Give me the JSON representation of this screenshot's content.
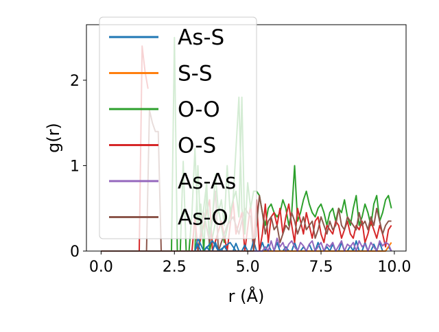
{
  "chart_data": {
    "type": "line",
    "xlabel": "r (Å)",
    "ylabel": "g(r)",
    "xlim": [
      -0.5,
      10.4
    ],
    "ylim": [
      0,
      2.65
    ],
    "xticks": [
      0.0,
      2.5,
      5.0,
      7.5,
      10.0
    ],
    "xtick_labels": [
      "0.0",
      "2.5",
      "5.0",
      "7.5",
      "10.0"
    ],
    "yticks": [
      0,
      1,
      2
    ],
    "ytick_labels": [
      "0",
      "1",
      "2"
    ],
    "grid": false,
    "legend_position": "upper-left",
    "x": [
      0.0,
      0.1,
      0.2,
      0.3,
      0.4,
      0.5,
      0.6,
      0.7,
      0.8,
      0.9,
      1.0,
      1.1,
      1.2,
      1.3,
      1.4,
      1.5,
      1.6,
      1.7,
      1.8,
      1.9,
      2.0,
      2.1,
      2.2,
      2.3,
      2.4,
      2.5,
      2.6,
      2.7,
      2.8,
      2.9,
      3.0,
      3.1,
      3.2,
      3.3,
      3.4,
      3.5,
      3.6,
      3.7,
      3.8,
      3.9,
      4.0,
      4.1,
      4.2,
      4.3,
      4.4,
      4.5,
      4.6,
      4.7,
      4.8,
      4.9,
      5.0,
      5.1,
      5.2,
      5.3,
      5.4,
      5.5,
      5.6,
      5.7,
      5.8,
      5.9,
      6.0,
      6.1,
      6.2,
      6.3,
      6.4,
      6.5,
      6.6,
      6.7,
      6.8,
      6.9,
      7.0,
      7.1,
      7.2,
      7.3,
      7.4,
      7.5,
      7.6,
      7.7,
      7.8,
      7.9,
      8.0,
      8.1,
      8.2,
      8.3,
      8.4,
      8.5,
      8.6,
      8.7,
      8.8,
      8.9,
      9.0,
      9.1,
      9.2,
      9.3,
      9.4,
      9.5,
      9.6,
      9.7,
      9.8,
      9.9
    ],
    "series": [
      {
        "name": "As-S",
        "color": "#1f77b4",
        "values": [
          0,
          0,
          0,
          0,
          0,
          0,
          0,
          0,
          0,
          0,
          0,
          0,
          0,
          0,
          0,
          0,
          0,
          0,
          0,
          0,
          0,
          0,
          0,
          0,
          0,
          0,
          0,
          0,
          0,
          0,
          0,
          0,
          0,
          0.08,
          0,
          0,
          0.05,
          0,
          0,
          0.1,
          0,
          0,
          0.06,
          0,
          0,
          0,
          0.09,
          0,
          0,
          0.07,
          0,
          0,
          0.12,
          0,
          0,
          0.1,
          0,
          0.08,
          0,
          0,
          0.1,
          0,
          0,
          0.05,
          0,
          0,
          0.1,
          0,
          0,
          0.05,
          0,
          0.08,
          0,
          0,
          0.1,
          0,
          0,
          0.05,
          0,
          0.08,
          0,
          0,
          0.1,
          0,
          0,
          0.06,
          0,
          0.12,
          0,
          0,
          0.1,
          0,
          0,
          0.08,
          0,
          0.1,
          0,
          0,
          0.05,
          0
        ]
      },
      {
        "name": "S-S",
        "color": "#ff7f0e",
        "values": [
          0,
          0,
          0,
          0,
          0,
          0,
          0,
          0,
          0,
          0,
          0,
          0,
          0,
          0,
          0,
          0,
          0,
          0,
          0,
          0,
          0,
          0,
          0,
          0,
          0,
          0,
          0,
          0,
          0,
          0,
          0,
          0,
          0,
          0,
          0,
          0,
          0,
          0,
          0,
          0,
          0,
          0,
          0,
          0,
          0,
          0,
          0,
          0,
          0,
          0,
          0,
          0,
          0,
          0,
          0,
          0,
          0,
          0,
          0,
          0,
          0,
          0,
          0,
          0,
          0,
          0,
          0,
          0,
          0,
          0,
          0,
          0,
          0,
          0,
          0,
          0,
          0,
          0,
          0,
          0,
          0,
          0,
          0,
          0,
          0,
          0,
          0,
          0,
          0,
          0,
          0,
          0,
          0,
          0,
          0,
          0,
          0,
          0,
          0.05,
          0.1
        ]
      },
      {
        "name": "O-O",
        "color": "#2ca02c",
        "values": [
          0,
          0,
          0,
          0,
          0,
          0,
          0,
          0,
          0,
          0,
          0,
          0,
          0,
          0,
          0,
          0,
          0,
          0,
          0,
          0,
          0,
          0,
          0,
          0,
          0,
          2.5,
          0,
          0,
          1.05,
          0,
          0,
          0.45,
          1.2,
          0.3,
          0.55,
          0,
          0.7,
          0.2,
          0.4,
          0.9,
          0.45,
          0.6,
          0.3,
          1.0,
          0.45,
          0.6,
          0.7,
          0.4,
          1.8,
          0.2,
          0.8,
          0.5,
          0.7,
          0.7,
          0.65,
          0.45,
          0.3,
          0.5,
          0.55,
          0.45,
          0.4,
          0.45,
          0.6,
          0.5,
          0.3,
          0.45,
          1.0,
          0.35,
          0.45,
          0.6,
          0.7,
          0.55,
          0.45,
          0.4,
          0.5,
          0.55,
          0.45,
          0.3,
          0.45,
          0.5,
          0.35,
          0.5,
          0.45,
          0.6,
          0.4,
          0.3,
          0.5,
          0.65,
          0.3,
          0.4,
          0.55,
          0.45,
          0.3,
          0.55,
          0.65,
          0.35,
          0.45,
          0.6,
          0.65,
          0.5
        ]
      },
      {
        "name": "O-S",
        "color": "#d62728",
        "values": [
          0,
          0,
          0,
          0,
          0,
          0,
          0,
          0,
          0,
          0,
          0,
          0,
          0,
          0,
          0,
          0,
          0,
          0,
          0,
          0,
          0,
          0,
          0,
          0,
          0,
          0,
          0,
          0,
          0,
          0,
          0,
          0,
          0,
          0,
          0,
          0,
          0,
          0,
          0,
          0,
          0,
          0,
          0,
          0,
          0,
          0,
          0,
          0,
          0,
          0,
          0,
          0,
          0,
          0.6,
          0,
          0.2,
          0.55,
          0.1,
          0.4,
          0.45,
          0.3,
          0.5,
          0.2,
          0.4,
          0.55,
          0.3,
          0.1,
          0.5,
          0.35,
          0.2,
          0.45,
          0.3,
          0.15,
          0.35,
          0.4,
          0.2,
          0.1,
          0.3,
          0.25,
          0.2,
          0.35,
          0.3,
          0.15,
          0.25,
          0.35,
          0.2,
          0.15,
          0.3,
          0.25,
          0.35,
          0.1,
          0.2,
          0.35,
          0.25,
          0.15,
          0.3,
          0.2,
          0.05,
          0.25,
          0.3
        ]
      },
      {
        "name": "As-As",
        "color": "#9467bd",
        "values": [
          0,
          0,
          0,
          0,
          0,
          0,
          0,
          0,
          0,
          0,
          0,
          0,
          0,
          0,
          0,
          0,
          0,
          0,
          0,
          0,
          0,
          0,
          0,
          0,
          0,
          0,
          0,
          0,
          0,
          0,
          0,
          0,
          0,
          0,
          0,
          0,
          0,
          0,
          0,
          0,
          0,
          0,
          0,
          0,
          0,
          0,
          0,
          0,
          0,
          0,
          0,
          0,
          0,
          0,
          0,
          0,
          0.05,
          0,
          0.12,
          0,
          0.15,
          0.05,
          0.1,
          0,
          0.08,
          0.12,
          0.05,
          0,
          0.1,
          0.06,
          0,
          0.08,
          0.12,
          0,
          0.05,
          0.1,
          0,
          0.08,
          0.05,
          0.1,
          0,
          0.06,
          0.12,
          0,
          0.08,
          0.05,
          0.1,
          0,
          0.12,
          0.05,
          0.08,
          0,
          0.1,
          0.05,
          0,
          0.12,
          0.06,
          0.1,
          0.08,
          0
        ]
      },
      {
        "name": "As-O",
        "color": "#8c564b",
        "values": [
          0,
          0,
          0,
          0,
          0,
          0,
          0,
          0,
          0,
          0,
          0,
          0,
          0,
          0,
          0,
          0,
          0,
          0,
          0,
          0,
          0,
          0,
          0,
          0,
          0,
          0,
          0,
          0,
          0,
          0,
          0,
          0,
          0,
          0,
          0,
          0,
          0,
          0,
          0,
          0,
          0,
          0,
          0,
          0,
          0,
          0,
          0,
          0,
          0,
          0,
          0,
          0,
          0,
          0.3,
          0.65,
          0.45,
          0.2,
          0.35,
          0.4,
          0.25,
          0.3,
          0.1,
          0.2,
          0.3,
          0.25,
          0.45,
          0.35,
          0.2,
          0.3,
          0.4,
          0.25,
          0.3,
          0.35,
          0.15,
          0.25,
          0.4,
          0.3,
          0.2,
          0.35,
          0.25,
          0.3,
          0.5,
          0.3,
          0.25,
          0.4,
          0.35,
          0.3,
          0.25,
          0.45,
          0.3,
          0.35,
          0.25,
          0.4,
          0.3,
          0.5,
          0.35,
          0.2,
          0.3,
          0.35,
          0.35
        ]
      }
    ],
    "background_traces": [
      {
        "series": "O-S",
        "points": [
          [
            1.3,
            0.0
          ],
          [
            1.4,
            2.4
          ],
          [
            1.5,
            2.1
          ],
          [
            1.6,
            1.9
          ]
        ]
      },
      {
        "series": "As-O",
        "points": [
          [
            1.55,
            0.0
          ],
          [
            1.65,
            1.65
          ],
          [
            1.75,
            1.5
          ],
          [
            1.85,
            1.4
          ],
          [
            1.95,
            1.4
          ],
          [
            2.05,
            0.0
          ]
        ]
      },
      {
        "series": "O-O",
        "points": [
          [
            3.2,
            0.0
          ],
          [
            3.3,
            1.0
          ],
          [
            3.4,
            0.2
          ],
          [
            3.6,
            0.8
          ],
          [
            3.7,
            0.0
          ],
          [
            4.0,
            0.5
          ],
          [
            4.2,
            0.1
          ],
          [
            4.5,
            0.6
          ],
          [
            4.7,
            1.8
          ],
          [
            4.8,
            0.5
          ],
          [
            4.9,
            0.2
          ]
        ]
      },
      {
        "series": "O-S",
        "points": [
          [
            3.1,
            0.0
          ],
          [
            3.2,
            0.4
          ],
          [
            3.3,
            0.0
          ],
          [
            3.5,
            0.3
          ],
          [
            3.7,
            0.6
          ],
          [
            3.8,
            0.0
          ],
          [
            4.1,
            0.35
          ],
          [
            4.3,
            0.0
          ],
          [
            4.5,
            0.6
          ],
          [
            4.6,
            0.2
          ],
          [
            4.8,
            0.45
          ],
          [
            4.9,
            0.0
          ],
          [
            5.1,
            0.55
          ],
          [
            5.2,
            0.1
          ]
        ]
      },
      {
        "series": "As-O",
        "points": [
          [
            3.3,
            0.0
          ],
          [
            3.5,
            0.45
          ],
          [
            3.7,
            0.1
          ],
          [
            3.9,
            0.7
          ],
          [
            4.0,
            0.0
          ],
          [
            4.3,
            0.3
          ],
          [
            4.5,
            0.4
          ],
          [
            4.7,
            0.2
          ],
          [
            4.9,
            0.5
          ],
          [
            5.1,
            0.4
          ],
          [
            5.2,
            0.0
          ]
        ]
      },
      {
        "series": "As-S",
        "points": [
          [
            3.2,
            0.0
          ],
          [
            3.3,
            0.15
          ],
          [
            3.5,
            0.0
          ],
          [
            3.8,
            0.12
          ],
          [
            4.0,
            0.0
          ],
          [
            4.4,
            0.1
          ],
          [
            4.6,
            0.0
          ]
        ]
      }
    ]
  }
}
